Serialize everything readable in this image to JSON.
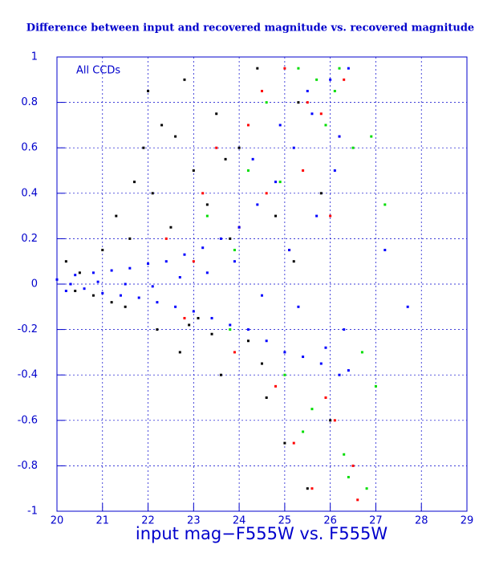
{
  "chart_data": {
    "type": "scatter",
    "title": "Difference between input and recovered magnitude vs. recovered magnitude",
    "x_label": "input mag−F555W vs. F555W",
    "annotation": "All CCDs",
    "xlim": [
      20,
      29
    ],
    "ylim": [
      -1,
      1
    ],
    "xticks": [
      20,
      21,
      22,
      23,
      24,
      25,
      26,
      27,
      28,
      29
    ],
    "yticks": [
      -1,
      -0.8,
      -0.6,
      -0.4,
      -0.2,
      0,
      0.2,
      0.4,
      0.6,
      0.8,
      1
    ],
    "grid": true,
    "series": [
      {
        "color": "#000000",
        "x": [
          20.2,
          20.5,
          20.8,
          21.0,
          21.3,
          21.5,
          21.7,
          21.9,
          22.0,
          22.2,
          22.3,
          22.5,
          22.7,
          22.8,
          23.0,
          23.1,
          23.3,
          23.5,
          23.6,
          23.8,
          24.0,
          24.2,
          24.4,
          24.6,
          24.8,
          25.0,
          25.2,
          25.5,
          25.8,
          26.0,
          21.2,
          22.1,
          22.9,
          23.7,
          24.5,
          25.3,
          20.4,
          21.6,
          22.6,
          23.4
        ],
        "values": [
          0.1,
          0.05,
          -0.05,
          0.15,
          0.3,
          -0.1,
          0.45,
          0.6,
          0.85,
          -0.2,
          0.7,
          0.25,
          -0.3,
          0.9,
          0.5,
          -0.15,
          0.35,
          0.75,
          -0.4,
          0.2,
          0.6,
          -0.25,
          0.95,
          -0.5,
          0.3,
          -0.7,
          0.1,
          -0.9,
          0.4,
          -0.6,
          -0.08,
          0.4,
          -0.18,
          0.55,
          -0.35,
          0.8,
          -0.03,
          0.2,
          0.65,
          -0.22
        ]
      },
      {
        "color": "#ff0000",
        "x": [
          22.4,
          22.8,
          23.2,
          23.5,
          23.9,
          24.2,
          24.5,
          24.8,
          25.0,
          25.2,
          25.4,
          25.6,
          25.8,
          26.0,
          26.1,
          26.3,
          26.5,
          26.6,
          23.0,
          24.0,
          25.1,
          25.9,
          26.2,
          24.6,
          25.5
        ],
        "values": [
          0.2,
          -0.15,
          0.4,
          0.6,
          -0.3,
          0.7,
          0.85,
          -0.45,
          0.95,
          -0.7,
          0.5,
          -0.9,
          0.75,
          0.3,
          -0.6,
          0.9,
          -0.8,
          -0.95,
          0.1,
          0.25,
          0.15,
          -0.5,
          0.65,
          0.4,
          0.8
        ]
      },
      {
        "color": "#00dd00",
        "x": [
          23.3,
          23.8,
          24.2,
          24.6,
          25.0,
          25.3,
          25.6,
          25.9,
          26.1,
          26.3,
          26.5,
          26.7,
          26.9,
          27.2,
          24.9,
          25.7,
          26.4,
          26.8,
          23.9,
          25.4,
          26.2,
          27.0
        ],
        "values": [
          0.3,
          -0.2,
          0.5,
          0.8,
          -0.4,
          0.95,
          -0.55,
          0.7,
          0.85,
          -0.75,
          0.6,
          -0.3,
          0.65,
          0.35,
          0.45,
          0.9,
          -0.85,
          -0.9,
          0.15,
          -0.65,
          0.95,
          -0.45
        ]
      },
      {
        "color": "#0000ff",
        "x": [
          20.0,
          20.2,
          20.4,
          20.6,
          20.8,
          21.0,
          21.2,
          21.4,
          21.6,
          21.8,
          22.0,
          22.2,
          22.4,
          22.6,
          22.8,
          23.0,
          23.2,
          23.4,
          23.6,
          23.8,
          24.0,
          24.2,
          24.4,
          24.6,
          24.8,
          25.0,
          25.2,
          25.4,
          25.6,
          25.8,
          26.0,
          26.2,
          26.4,
          20.3,
          20.9,
          21.5,
          22.1,
          22.7,
          23.3,
          23.9,
          24.5,
          25.1,
          25.7,
          26.3,
          24.3,
          24.9,
          25.5,
          26.1,
          25.3,
          25.9,
          26.4,
          26.2,
          27.2,
          27.7
        ],
        "values": [
          0.02,
          -0.03,
          0.04,
          -0.02,
          0.05,
          -0.04,
          0.06,
          -0.05,
          0.07,
          -0.06,
          0.09,
          -0.08,
          0.1,
          -0.1,
          0.13,
          -0.12,
          0.16,
          -0.15,
          0.2,
          -0.18,
          0.25,
          -0.2,
          0.35,
          -0.25,
          0.45,
          -0.3,
          0.6,
          -0.32,
          0.75,
          -0.35,
          0.9,
          -0.4,
          0.95,
          0.0,
          0.01,
          0.0,
          -0.01,
          0.03,
          0.05,
          0.1,
          -0.05,
          0.15,
          0.3,
          -0.2,
          0.55,
          0.7,
          0.85,
          0.5,
          -0.1,
          -0.28,
          -0.38,
          0.65,
          0.15,
          -0.1
        ]
      }
    ]
  }
}
